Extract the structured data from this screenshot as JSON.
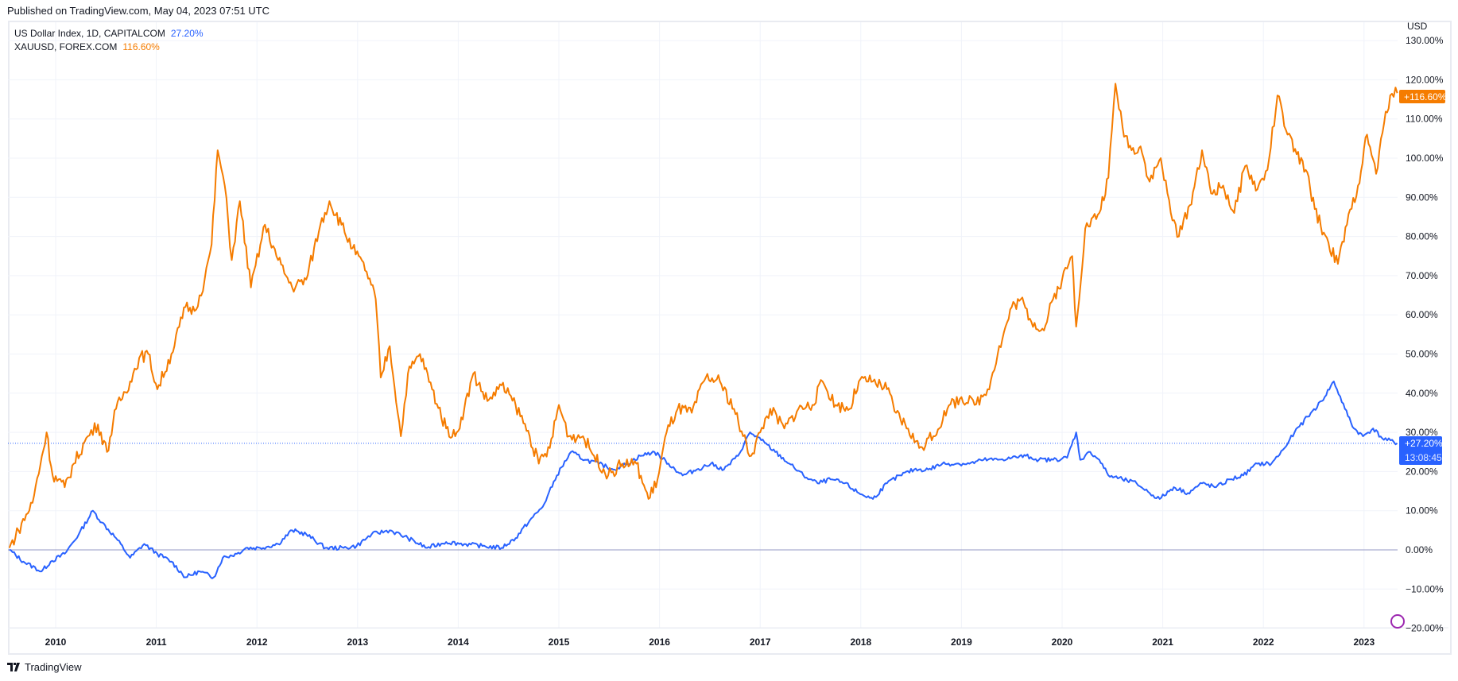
{
  "header": {
    "published": "Published on TradingView.com, May 04, 2023 07:51 UTC"
  },
  "legend": [
    {
      "label": "US Dollar Index, 1D, CAPITALCOM",
      "value": "27.20%",
      "color": "#2962ff"
    },
    {
      "label": "XAUUSD, FOREX.COM",
      "value": "116.60%",
      "color": "#f57c00"
    }
  ],
  "price_tags": {
    "gold": "+116.60%",
    "dxy": "+27.20%",
    "countdown": "13:08:45"
  },
  "footer": {
    "brand": "TradingView"
  },
  "chart_data": {
    "type": "line",
    "currency_label": "USD",
    "x_range": [
      2009.54,
      2023.34
    ],
    "ylim": [
      -20,
      130
    ],
    "y_ticks": [
      -20,
      -10,
      0,
      10,
      20,
      30,
      40,
      50,
      60,
      70,
      80,
      90,
      100,
      110,
      120,
      130
    ],
    "y_tick_labels": [
      "−20.00%",
      "−10.00%",
      "0.00%",
      "10.00%",
      "20.00%",
      "30.00%",
      "40.00%",
      "50.00%",
      "60.00%",
      "70.00%",
      "80.00%",
      "90.00%",
      "100.00%",
      "110.00%",
      "120.00%",
      "130.00%"
    ],
    "x_ticks": [
      2010,
      2011,
      2012,
      2013,
      2014,
      2015,
      2016,
      2017,
      2018,
      2019,
      2020,
      2021,
      2022,
      2023
    ],
    "x_tick_labels": [
      "2010",
      "2011",
      "2012",
      "2013",
      "2014",
      "2015",
      "2016",
      "2017",
      "2018",
      "2019",
      "2020",
      "2021",
      "2022",
      "2023"
    ],
    "grid": true,
    "series": [
      {
        "name": "US Dollar Index",
        "color": "#2962ff",
        "last": 27.2,
        "x": [
          2009.54,
          2009.68,
          2009.86,
          2009.95,
          2010.09,
          2010.23,
          2010.37,
          2010.46,
          2010.6,
          2010.74,
          2010.88,
          2011.01,
          2011.15,
          2011.29,
          2011.43,
          2011.57,
          2011.66,
          2011.8,
          2011.89,
          2012.03,
          2012.21,
          2012.35,
          2012.49,
          2012.68,
          2012.86,
          2012.99,
          2013.14,
          2013.32,
          2013.5,
          2013.69,
          2013.88,
          2014.06,
          2014.24,
          2014.43,
          2014.57,
          2014.71,
          2014.84,
          2014.98,
          2015.12,
          2015.26,
          2015.4,
          2015.54,
          2015.68,
          2015.81,
          2015.95,
          2016.09,
          2016.23,
          2016.37,
          2016.51,
          2016.64,
          2016.78,
          2016.9,
          2017.01,
          2017.15,
          2017.29,
          2017.43,
          2017.57,
          2017.7,
          2017.84,
          2017.98,
          2018.12,
          2018.26,
          2018.39,
          2018.53,
          2018.67,
          2018.81,
          2018.95,
          2019.08,
          2019.22,
          2019.36,
          2019.5,
          2019.64,
          2019.77,
          2019.91,
          2020.05,
          2020.14,
          2020.18,
          2020.28,
          2020.37,
          2020.46,
          2020.6,
          2020.74,
          2020.87,
          2020.97,
          2021.11,
          2021.25,
          2021.39,
          2021.53,
          2021.67,
          2021.8,
          2021.94,
          2022.08,
          2022.21,
          2022.31,
          2022.44,
          2022.58,
          2022.7,
          2022.81,
          2022.9,
          2022.99,
          2023.09,
          2023.18,
          2023.33
        ],
        "y": [
          0,
          -3,
          -5.5,
          -3,
          -1,
          4,
          10,
          7,
          3,
          -2,
          1.5,
          -1,
          -3,
          -7,
          -5.5,
          -7,
          -2,
          -1,
          0.5,
          0.5,
          1.5,
          5,
          4,
          0.5,
          0.5,
          1,
          4,
          5,
          3,
          0.5,
          2,
          1.5,
          1,
          0.5,
          3,
          7.5,
          11,
          19,
          25,
          23,
          22,
          20.5,
          22,
          24,
          25,
          22,
          19,
          20.5,
          22,
          20.5,
          24,
          30,
          28,
          25,
          22,
          19,
          17,
          18,
          17,
          14.5,
          13,
          17,
          19,
          20.5,
          20.5,
          22,
          22,
          22,
          23,
          23,
          23.5,
          24,
          23,
          23,
          23.5,
          30,
          23,
          25,
          23,
          19,
          18,
          17,
          14.5,
          13,
          16,
          14.5,
          17,
          16,
          18,
          19,
          22,
          22,
          26,
          30,
          34,
          38,
          43,
          36,
          31,
          29,
          31,
          28.5,
          27.2
        ]
      },
      {
        "name": "XAUUSD",
        "color": "#f57c00",
        "last": 116.6,
        "x": [
          2009.54,
          2009.63,
          2009.77,
          2009.91,
          2009.97,
          2010.09,
          2010.18,
          2010.32,
          2010.42,
          2010.51,
          2010.6,
          2010.74,
          2010.83,
          2010.92,
          2011.01,
          2011.15,
          2011.29,
          2011.38,
          2011.48,
          2011.55,
          2011.61,
          2011.68,
          2011.75,
          2011.83,
          2011.94,
          2012.08,
          2012.21,
          2012.35,
          2012.49,
          2012.63,
          2012.72,
          2012.84,
          2012.95,
          2013.09,
          2013.18,
          2013.23,
          2013.32,
          2013.43,
          2013.5,
          2013.62,
          2013.74,
          2013.88,
          2013.97,
          2014.06,
          2014.15,
          2014.29,
          2014.43,
          2014.57,
          2014.71,
          2014.8,
          2014.91,
          2015.0,
          2015.1,
          2015.24,
          2015.35,
          2015.49,
          2015.63,
          2015.77,
          2015.89,
          2015.98,
          2016.07,
          2016.18,
          2016.32,
          2016.46,
          2016.6,
          2016.74,
          2016.83,
          2016.91,
          2017.0,
          2017.1,
          2017.24,
          2017.38,
          2017.52,
          2017.62,
          2017.75,
          2017.89,
          2017.98,
          2018.12,
          2018.26,
          2018.35,
          2018.47,
          2018.58,
          2018.72,
          2018.86,
          2019.0,
          2019.13,
          2019.26,
          2019.36,
          2019.5,
          2019.59,
          2019.68,
          2019.82,
          2019.91,
          2020.0,
          2020.1,
          2020.14,
          2020.23,
          2020.37,
          2020.46,
          2020.53,
          2020.6,
          2020.69,
          2020.78,
          2020.87,
          2020.98,
          2021.08,
          2021.16,
          2021.27,
          2021.39,
          2021.48,
          2021.6,
          2021.71,
          2021.82,
          2021.94,
          2022.04,
          2022.14,
          2022.24,
          2022.33,
          2022.42,
          2022.51,
          2022.6,
          2022.74,
          2022.83,
          2022.94,
          2023.03,
          2023.12,
          2023.2,
          2023.26,
          2023.33
        ],
        "y": [
          0.5,
          5,
          12,
          30,
          19,
          16,
          22,
          29,
          32,
          25,
          36,
          43,
          49,
          50,
          41,
          50,
          62,
          61,
          69,
          78,
          102,
          93,
          74,
          89,
          67,
          83,
          74,
          67,
          69,
          83,
          89,
          83,
          77,
          71,
          64,
          44,
          52,
          29,
          45,
          50,
          41,
          31,
          29,
          36,
          45,
          38,
          42,
          37,
          29,
          22,
          26,
          37,
          29,
          29,
          24,
          19,
          22,
          22,
          13,
          18,
          30,
          36,
          35,
          44,
          43,
          36,
          29,
          24,
          30,
          36,
          31,
          36,
          37,
          43,
          37,
          36,
          43,
          43,
          41,
          35,
          31,
          26,
          29,
          36,
          39,
          37,
          41,
          50,
          62,
          64,
          59,
          56,
          64,
          69,
          75,
          57,
          82,
          86,
          95,
          119,
          108,
          102,
          103,
          94,
          100,
          86,
          80,
          88,
          102,
          91,
          93,
          86,
          98,
          92,
          97,
          116,
          106,
          101,
          97,
          87,
          81,
          73,
          83,
          93,
          106,
          96,
          109,
          116,
          116.6
        ]
      }
    ]
  }
}
